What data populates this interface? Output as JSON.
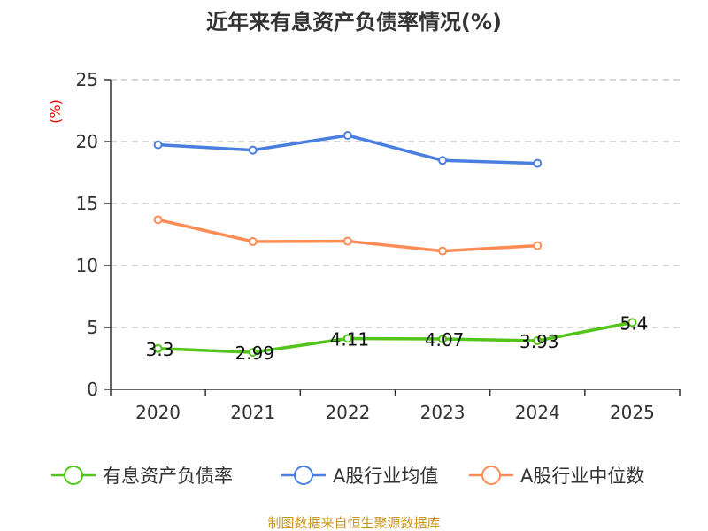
{
  "chart_data": {
    "type": "line",
    "title": "近年来有息资产负债率情况(%)",
    "ylabel": "(%)",
    "xlabel": "",
    "categories": [
      "2020",
      "2021",
      "2022",
      "2023",
      "2024",
      "2025"
    ],
    "ylim": [
      0,
      25
    ],
    "yticks": [
      0,
      5,
      10,
      15,
      20,
      25
    ],
    "grid": true,
    "legend_position": "bottom",
    "series": [
      {
        "name": "有息资产负债率",
        "color": "#52c41a",
        "values": [
          3.3,
          2.99,
          4.11,
          4.07,
          3.93,
          5.4
        ],
        "data_labels": [
          "3.3",
          "2.99",
          "4.11",
          "4.07",
          "3.93",
          "5.4"
        ]
      },
      {
        "name": "A股行业均值",
        "color": "#4a7fe0",
        "values": [
          19.74,
          19.31,
          20.5,
          18.48,
          18.24,
          null
        ]
      },
      {
        "name": "A股行业中位数",
        "color": "#ff8c55",
        "values": [
          13.69,
          11.93,
          11.96,
          11.17,
          11.6,
          null
        ]
      }
    ]
  },
  "source": "制图数据来自恒生聚源数据库"
}
